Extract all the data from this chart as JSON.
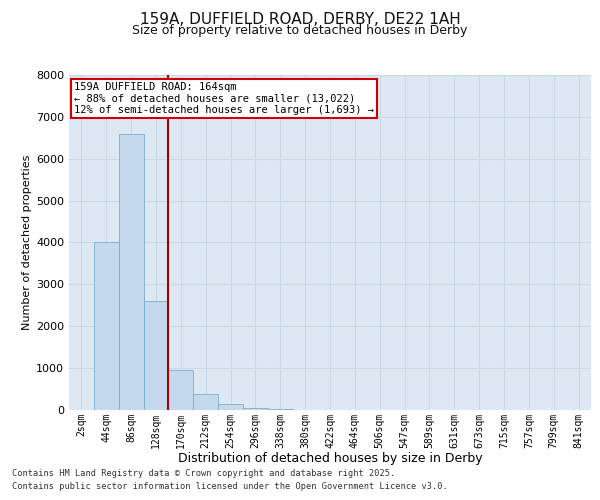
{
  "title_line1": "159A, DUFFIELD ROAD, DERBY, DE22 1AH",
  "title_line2": "Size of property relative to detached houses in Derby",
  "xlabel": "Distribution of detached houses by size in Derby",
  "ylabel": "Number of detached properties",
  "bar_labels": [
    "2sqm",
    "44sqm",
    "86sqm",
    "128sqm",
    "170sqm",
    "212sqm",
    "254sqm",
    "296sqm",
    "338sqm",
    "380sqm",
    "422sqm",
    "464sqm",
    "506sqm",
    "547sqm",
    "589sqm",
    "631sqm",
    "673sqm",
    "715sqm",
    "757sqm",
    "799sqm",
    "841sqm"
  ],
  "bar_values": [
    10,
    4000,
    6600,
    2600,
    950,
    380,
    140,
    50,
    15,
    2,
    0,
    0,
    0,
    0,
    0,
    0,
    0,
    0,
    0,
    0,
    0
  ],
  "bar_color": "#c5d9ee",
  "bar_edge_color": "#7aadce",
  "vline_x": 3.5,
  "vline_color": "#aa0000",
  "annotation_title": "159A DUFFIELD ROAD: 164sqm",
  "annotation_line2": "← 88% of detached houses are smaller (13,022)",
  "annotation_line3": "12% of semi-detached houses are larger (1,693) →",
  "annotation_box_color": "#cc0000",
  "ylim": [
    0,
    8000
  ],
  "yticks": [
    0,
    1000,
    2000,
    3000,
    4000,
    5000,
    6000,
    7000,
    8000
  ],
  "grid_color": "#c8d8e8",
  "background_color": "#dde8f3",
  "footer_line1": "Contains HM Land Registry data © Crown copyright and database right 2025.",
  "footer_line2": "Contains public sector information licensed under the Open Government Licence v3.0."
}
